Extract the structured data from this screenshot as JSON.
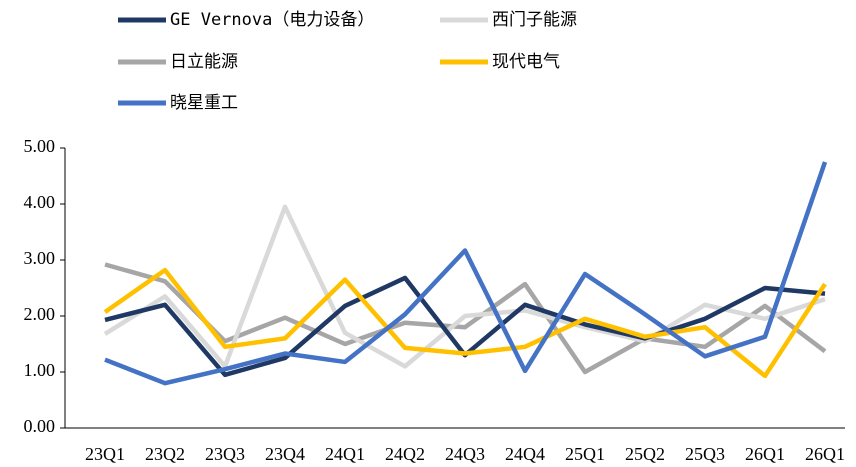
{
  "chart_data": {
    "type": "line",
    "categories": [
      "23Q1",
      "23Q2",
      "23Q3",
      "23Q4",
      "24Q1",
      "24Q2",
      "24Q3",
      "24Q4",
      "25Q1",
      "25Q2",
      "25Q3",
      "26Q1",
      "26Q1"
    ],
    "series": [
      {
        "name": "GE Vernova（电力设备）",
        "color": "#1f3864",
        "values": [
          1.93,
          2.2,
          0.95,
          1.25,
          2.18,
          2.68,
          1.3,
          2.2,
          1.85,
          1.6,
          1.95,
          2.5,
          2.4
        ]
      },
      {
        "name": "西门子能源",
        "color": "#d9d9d9",
        "values": [
          1.68,
          2.35,
          1.1,
          3.95,
          1.7,
          1.1,
          2.0,
          2.1,
          1.8,
          1.55,
          2.2,
          1.95,
          2.3
        ]
      },
      {
        "name": "日立能源",
        "color": "#a6a6a6",
        "values": [
          2.92,
          2.62,
          1.55,
          1.97,
          1.5,
          1.88,
          1.8,
          2.57,
          1.0,
          1.6,
          1.45,
          2.18,
          1.37
        ]
      },
      {
        "name": "现代电气",
        "color": "#ffc000",
        "values": [
          2.07,
          2.82,
          1.45,
          1.6,
          2.65,
          1.43,
          1.33,
          1.45,
          1.95,
          1.63,
          1.8,
          0.93,
          2.57
        ]
      },
      {
        "name": "晓星重工",
        "color": "#4472c4",
        "values": [
          1.22,
          0.8,
          1.05,
          1.33,
          1.18,
          2.03,
          3.17,
          1.02,
          2.75,
          2.03,
          1.28,
          1.63,
          4.75
        ]
      }
    ],
    "ylim": [
      0,
      5
    ],
    "yticks": [
      {
        "value": 0,
        "label": "0.00"
      },
      {
        "value": 1,
        "label": "1.00"
      },
      {
        "value": 2,
        "label": "2.00"
      },
      {
        "value": 3,
        "label": "3.00"
      },
      {
        "value": 4,
        "label": "4.00"
      },
      {
        "value": 5,
        "label": "5.00"
      }
    ]
  }
}
